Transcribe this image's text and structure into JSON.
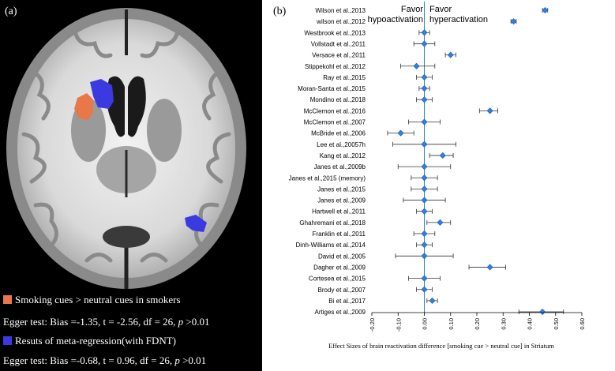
{
  "panel_a": {
    "label": "(a)",
    "legend": [
      {
        "swatch_color": "#e8784a",
        "text": "Smoking cues > neutral cues in smokers"
      },
      {
        "text": "Egger test: Bias =-1.35, t = -2.56, df = 26, ",
        "p": "p",
        "tail": " >0.01"
      },
      {
        "swatch_color": "#3a3ae0",
        "text": "Resuts of meta-regression(with FDNT)"
      },
      {
        "text": "Egger test: Bias =-0.68, t = 0.96, df = 26, ",
        "p": "p",
        "tail": " >0.01"
      }
    ]
  },
  "panel_b": {
    "label": "(b)",
    "favor_left": [
      "Favor",
      "hypoactivation"
    ],
    "favor_right": [
      "Favor",
      "hyperactivation"
    ]
  },
  "chart_data": {
    "type": "forest",
    "xlabel": "Effect Sizes of brain reactivation difference [smoking cue > neutral cue] in Striatum",
    "xlim": [
      -0.2,
      0.6
    ],
    "x_ticks": [
      "-0.20",
      "-0.10",
      "0.00",
      "0.10",
      "0.20",
      "0.30",
      "0.40",
      "0.50",
      "0.60"
    ],
    "x_tick_values": [
      -0.2,
      -0.1,
      0.0,
      0.1,
      0.2,
      0.3,
      0.4,
      0.5,
      0.6
    ],
    "marker_color": "#2f7fe0",
    "studies": [
      {
        "name": "Wilson et al.,2013",
        "es": 0.46,
        "lo": 0.45,
        "hi": 0.47
      },
      {
        "name": "wilson et al.,2012",
        "es": 0.34,
        "lo": 0.33,
        "hi": 0.35
      },
      {
        "name": "Westbrook et al.,2013",
        "es": 0.0,
        "lo": -0.02,
        "hi": 0.02
      },
      {
        "name": "Vollstadt et al.,2011",
        "es": 0.0,
        "lo": -0.04,
        "hi": 0.04
      },
      {
        "name": "Versace et al.,2011",
        "es": 0.1,
        "lo": 0.08,
        "hi": 0.12
      },
      {
        "name": "Stippekohl et al.,2012",
        "es": -0.03,
        "lo": -0.09,
        "hi": 0.04
      },
      {
        "name": "Ray et al.,2015",
        "es": 0.0,
        "lo": -0.03,
        "hi": 0.03
      },
      {
        "name": "Moran-Santa et al.,2015",
        "es": 0.0,
        "lo": -0.02,
        "hi": 0.02
      },
      {
        "name": "Mondino et al.,2018",
        "es": 0.0,
        "lo": -0.03,
        "hi": 0.03
      },
      {
        "name": "McClernon et al.,2016",
        "es": 0.25,
        "lo": 0.21,
        "hi": 0.28
      },
      {
        "name": "McClernon et al.,2007",
        "es": 0.0,
        "lo": -0.06,
        "hi": 0.06
      },
      {
        "name": "McBride et al.,2006",
        "es": -0.09,
        "lo": -0.14,
        "hi": -0.04
      },
      {
        "name": "Lee et al.,20057h",
        "es": 0.0,
        "lo": -0.12,
        "hi": 0.12
      },
      {
        "name": "Kang et al.,2012",
        "es": 0.07,
        "lo": 0.02,
        "hi": 0.11
      },
      {
        "name": "Janes et al.,2009b",
        "es": 0.0,
        "lo": -0.1,
        "hi": 0.1
      },
      {
        "name": "Janes et al.,2015 (memory)",
        "es": 0.0,
        "lo": -0.05,
        "hi": 0.05
      },
      {
        "name": "Janes et al.,2015",
        "es": 0.0,
        "lo": -0.05,
        "hi": 0.05
      },
      {
        "name": "Janes et al.,2009",
        "es": 0.0,
        "lo": -0.08,
        "hi": 0.08
      },
      {
        "name": "Hartwell et al.,2011",
        "es": 0.0,
        "lo": -0.03,
        "hi": 0.03
      },
      {
        "name": "Ghahremani et al.,2018",
        "es": 0.06,
        "lo": 0.01,
        "hi": 0.1
      },
      {
        "name": "Franklin et al.,2011",
        "es": 0.0,
        "lo": -0.04,
        "hi": 0.04
      },
      {
        "name": "Dinh-Williams et al.,2014",
        "es": 0.0,
        "lo": -0.03,
        "hi": 0.03
      },
      {
        "name": "David et al.,2005",
        "es": 0.0,
        "lo": -0.11,
        "hi": 0.11
      },
      {
        "name": "Dagher et al.,2009",
        "es": 0.25,
        "lo": 0.17,
        "hi": 0.31
      },
      {
        "name": "Cortesea et al.,2015",
        "es": 0.0,
        "lo": -0.06,
        "hi": 0.06
      },
      {
        "name": "Brody et al.,2007",
        "es": 0.0,
        "lo": -0.03,
        "hi": 0.03
      },
      {
        "name": "Bi et al.,2017",
        "es": 0.03,
        "lo": 0.01,
        "hi": 0.05
      },
      {
        "name": "Artiges et al.,2009",
        "es": 0.45,
        "lo": 0.36,
        "hi": 0.53
      }
    ]
  }
}
